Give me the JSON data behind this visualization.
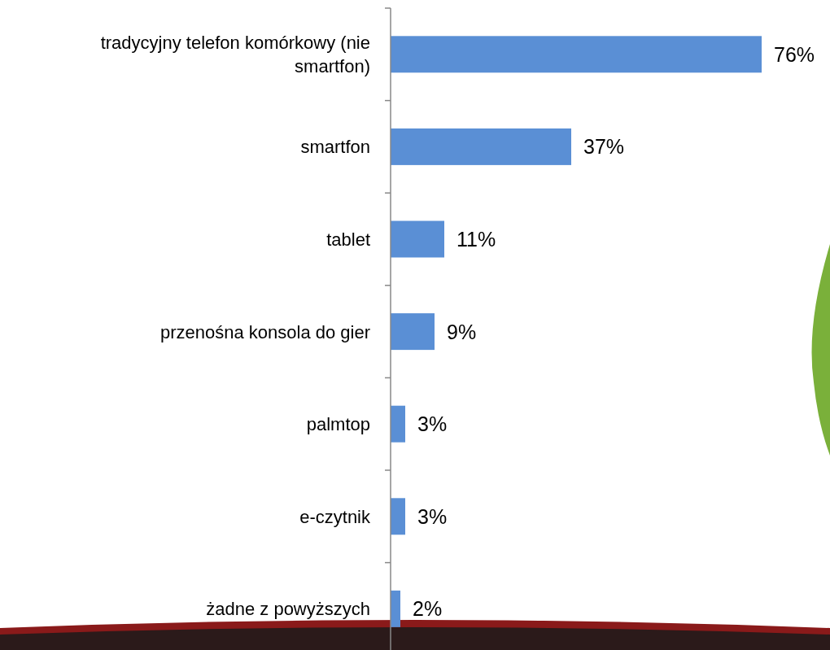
{
  "chart_data": {
    "type": "bar",
    "orientation": "horizontal",
    "value_labels": [
      "76%",
      "37%",
      "11%",
      "9%",
      "3%",
      "3%",
      "2%"
    ],
    "categories": [
      "tradycyjny telefon komórkowy (nie smartfon)",
      "smartfon",
      "tablet",
      "przenośna konsola do gier",
      "palmtop",
      "e-czytnik",
      "żadne z powyższych"
    ],
    "values": [
      76,
      37,
      11,
      9,
      3,
      3,
      2
    ],
    "color": "#5a8fd5"
  }
}
